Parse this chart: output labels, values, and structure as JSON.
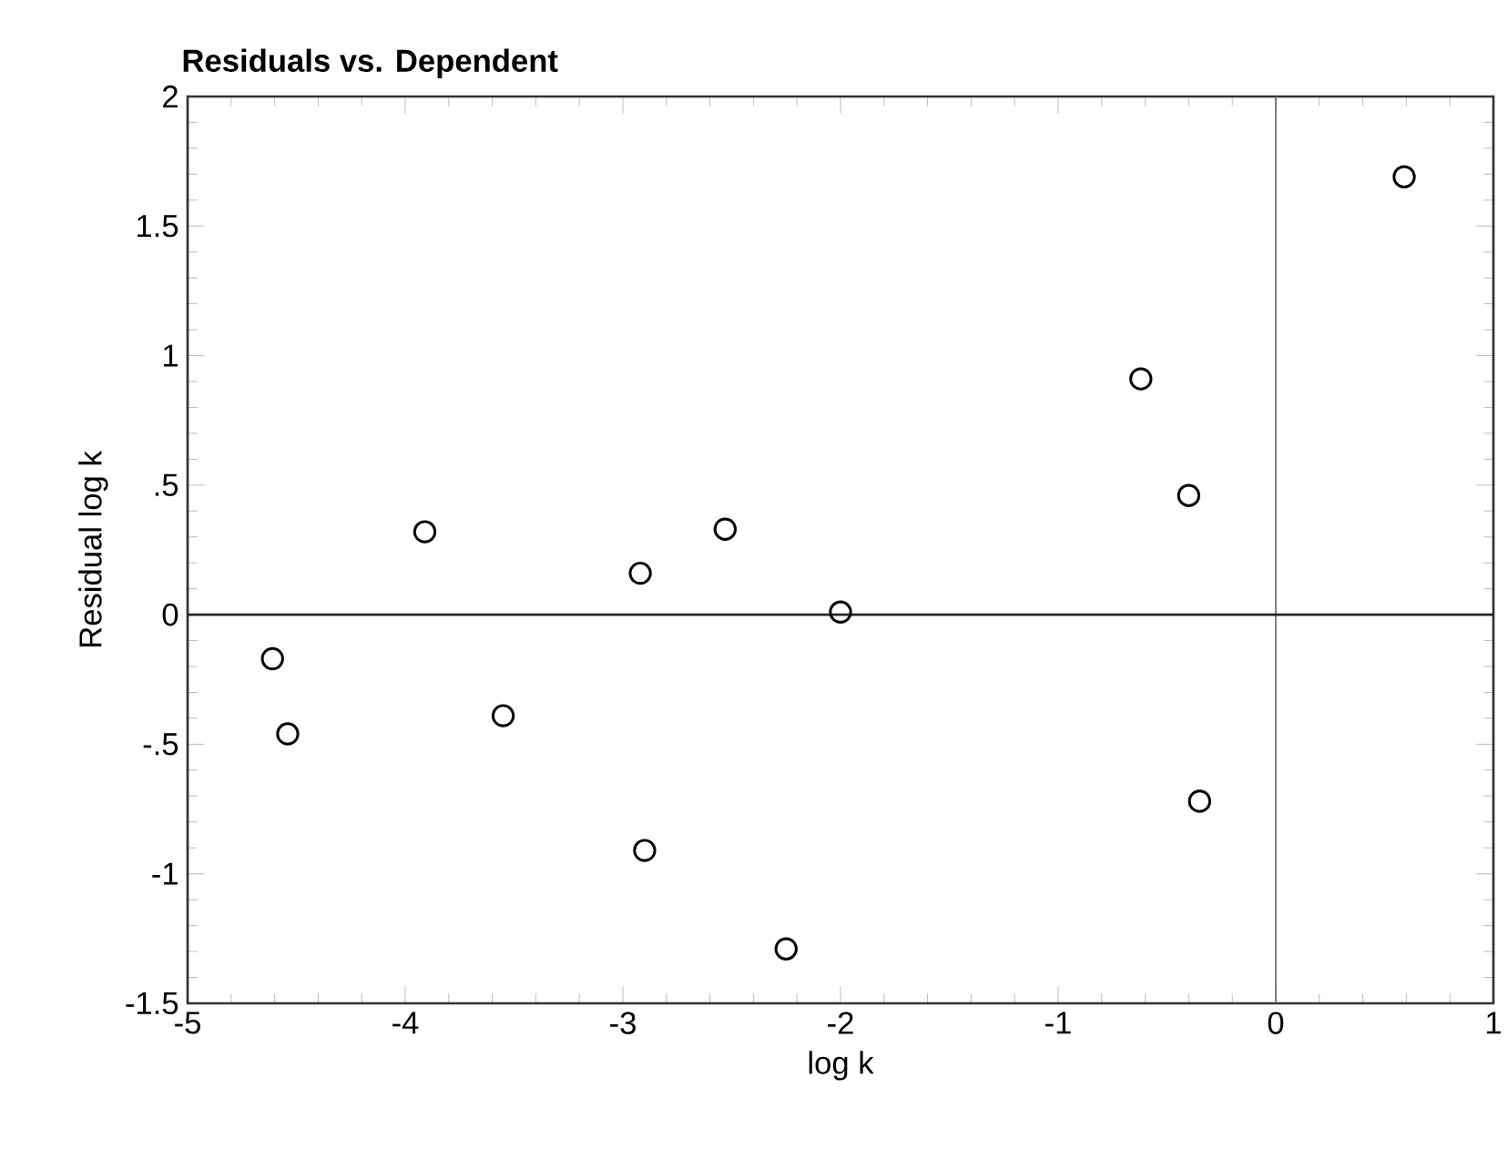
{
  "chart_data": {
    "type": "scatter",
    "title": "Residuals vs. Dependent",
    "xlabel": "log k",
    "ylabel": "Residual log k",
    "x": [
      -4.61,
      -4.54,
      -3.91,
      -3.55,
      -2.92,
      -2.9,
      -2.53,
      -2.25,
      -2.0,
      -0.62,
      -0.4,
      -0.35,
      0.59
    ],
    "series": [
      {
        "color": "#000000",
        "values": [
          -0.17,
          -0.46,
          0.32,
          -0.39,
          0.16,
          -0.91,
          0.33,
          -1.29,
          0.01,
          0.91,
          0.46,
          -0.72,
          1.69
        ]
      }
    ],
    "marker": "circle",
    "xlim": [
      -5,
      1
    ],
    "ylim": [
      -1.5,
      2
    ],
    "xticks": [
      -5,
      -4,
      -3,
      -2,
      -1,
      0,
      1
    ],
    "yticks": [
      -1.5,
      -1,
      {
        "value": -0.5,
        "label": "-.5"
      },
      0,
      {
        "value": 0.5,
        "label": ".5"
      },
      1,
      1.5,
      2
    ],
    "ref_lines": [
      {
        "axis": "x",
        "value": 0
      },
      {
        "axis": "y",
        "value": 0
      }
    ]
  }
}
